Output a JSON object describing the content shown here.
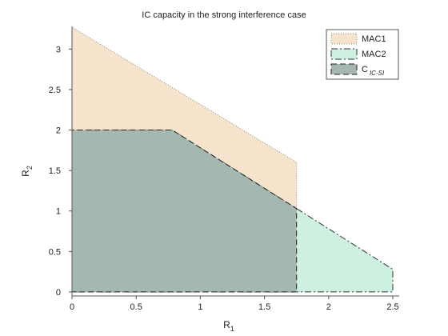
{
  "chart_data": {
    "type": "area",
    "title": "IC capacity in the strong interference case",
    "xlabel": "R",
    "xlabel_sub": "1",
    "ylabel": "R",
    "ylabel_sub": "2",
    "xlim": [
      0,
      2.5
    ],
    "ylim": [
      -0.05,
      3.28
    ],
    "xticks": [
      0,
      0.5,
      1,
      1.5,
      2,
      2.5
    ],
    "xtick_labels": [
      "0",
      "0.5",
      "1",
      "1.5",
      "2",
      "2.5"
    ],
    "yticks": [
      0,
      0.5,
      1,
      1.5,
      2,
      2.5,
      3
    ],
    "ytick_labels": [
      "0",
      "0.5",
      "1",
      "1.5",
      "2",
      "2.5",
      "3"
    ],
    "grid": false,
    "legend_position": "top-right",
    "series": [
      {
        "name": "MAC1",
        "label_main": "MAC1",
        "label_sub": "",
        "fill": "#f5e3cc",
        "stroke": "#8a8a8a",
        "dash": "dotted",
        "polygon": [
          [
            0,
            0
          ],
          [
            0,
            3.27
          ],
          [
            1.75,
            1.6
          ],
          [
            1.75,
            0
          ]
        ]
      },
      {
        "name": "MAC2",
        "label_main": "MAC2",
        "label_sub": "",
        "fill": "#cdf0e0",
        "stroke": "#333333",
        "dash": "dashdot",
        "polygon": [
          [
            0,
            0
          ],
          [
            0,
            2
          ],
          [
            0.78,
            2
          ],
          [
            2.5,
            0.28
          ],
          [
            2.5,
            0
          ]
        ]
      },
      {
        "name": "C_IC-SI",
        "label_main": "C",
        "label_sub": "IC-SI",
        "fill": "#a4b7b1",
        "stroke": "#222222",
        "dash": "dashed",
        "polygon": [
          [
            0,
            0
          ],
          [
            0,
            2
          ],
          [
            0.78,
            2
          ],
          [
            1.75,
            1.03
          ],
          [
            1.75,
            0
          ]
        ]
      }
    ]
  }
}
